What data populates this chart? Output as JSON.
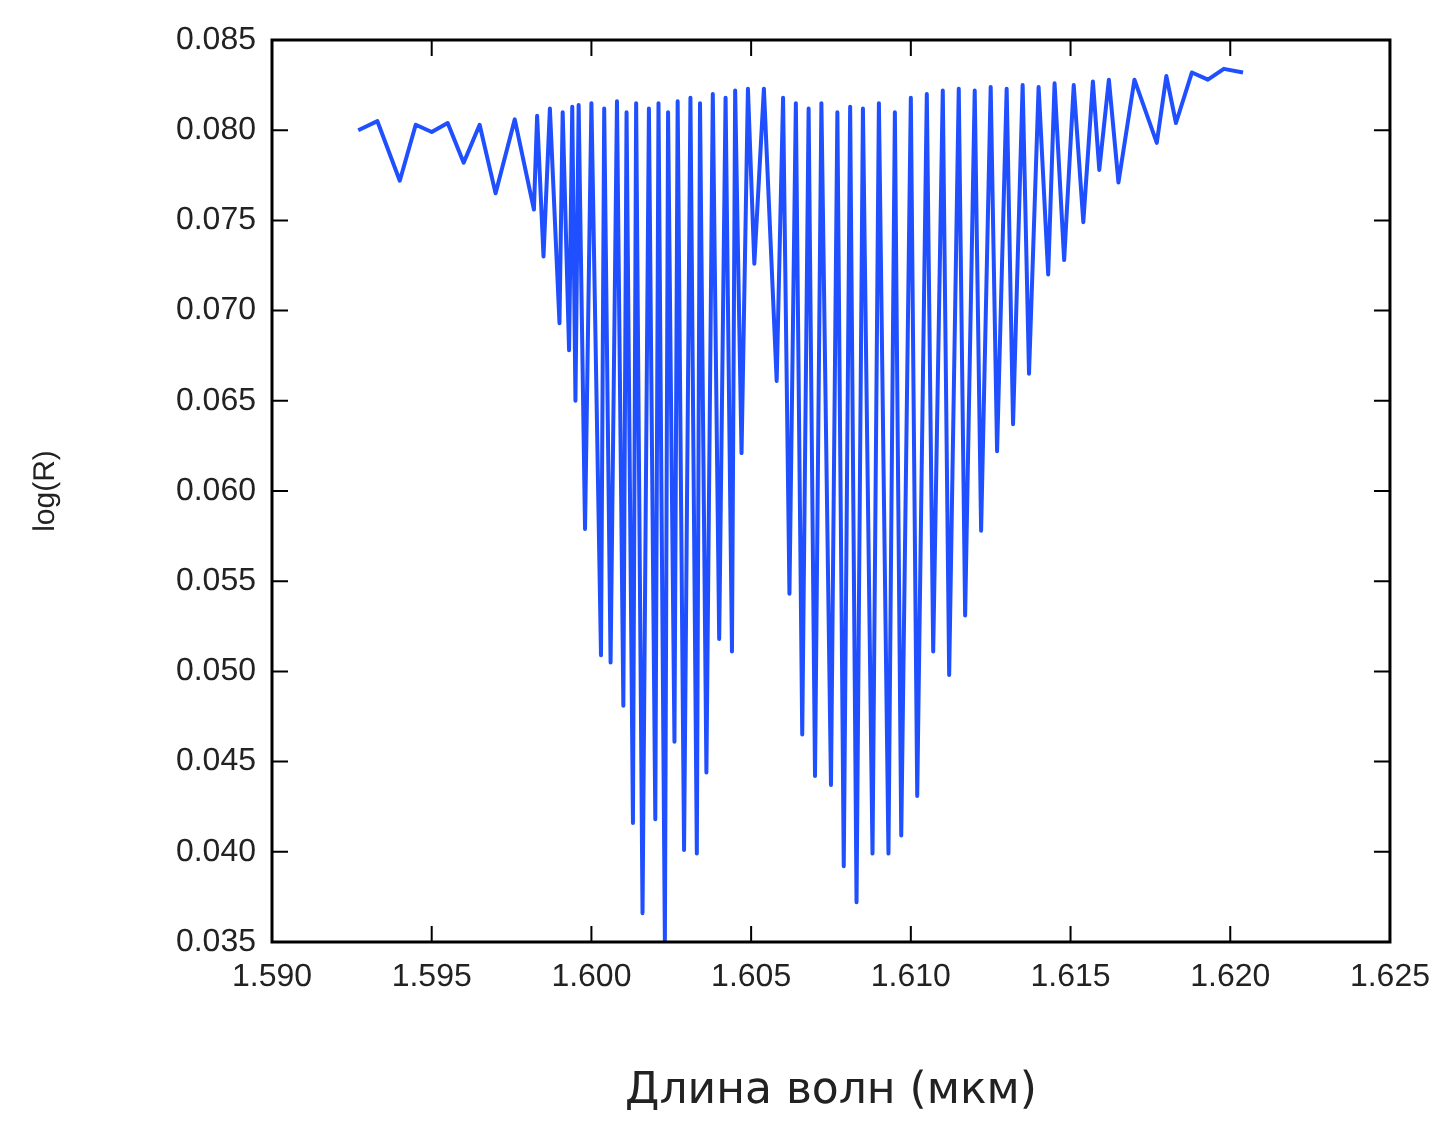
{
  "chart_data": {
    "type": "line",
    "xlabel": "Длина волн (мкм)",
    "ylabel": "log(R)",
    "xlim": [
      1.59,
      1.625
    ],
    "xticks": [
      {
        "value": 1.59,
        "label": "1.590"
      },
      1.595,
      {
        "value": 1.6,
        "label": "1.600"
      },
      1.605,
      {
        "value": 1.61,
        "label": "1.610"
      },
      1.615,
      {
        "value": 1.62,
        "label": "1.620"
      },
      1.625
    ],
    "ylim": [
      0.035,
      0.085
    ],
    "yticks": [
      0.035,
      {
        "value": 0.04,
        "label": "0.040"
      },
      0.045,
      {
        "value": 0.05,
        "label": "0.050"
      },
      0.055,
      {
        "value": 0.06,
        "label": "0.060"
      },
      0.065,
      {
        "value": 0.07,
        "label": "0.070"
      },
      0.075,
      {
        "value": 0.08,
        "label": "0.080"
      },
      0.085
    ],
    "marker": "none",
    "line_style": "solid",
    "legend": false,
    "series": [
      {
        "color": "#1f4fff",
        "x": [
          1.5927,
          1.5933,
          1.594,
          1.5945,
          1.595,
          1.5955,
          1.596,
          1.5965,
          1.597,
          1.5976,
          1.5982,
          1.5983,
          1.5985,
          1.5987,
          1.599,
          1.5991,
          1.5993,
          1.5994,
          1.5995,
          1.5996,
          1.5998,
          1.6,
          1.6003,
          1.6004,
          1.6006,
          1.6008,
          1.601,
          1.6011,
          1.6013,
          1.6014,
          1.6016,
          1.6018,
          1.602,
          1.6021,
          1.6023,
          1.6024,
          1.6026,
          1.6027,
          1.6029,
          1.6031,
          1.6033,
          1.6034,
          1.6036,
          1.6038,
          1.604,
          1.6042,
          1.6044,
          1.6045,
          1.6047,
          1.6049,
          1.6051,
          1.6054,
          1.6058,
          1.606,
          1.6062,
          1.6064,
          1.6066,
          1.6068,
          1.607,
          1.6072,
          1.6075,
          1.6077,
          1.6079,
          1.6081,
          1.6083,
          1.6085,
          1.6088,
          1.609,
          1.6093,
          1.6095,
          1.6097,
          1.61,
          1.6102,
          1.6105,
          1.6107,
          1.611,
          1.6112,
          1.6115,
          1.6117,
          1.612,
          1.6122,
          1.6125,
          1.6127,
          1.613,
          1.6132,
          1.6135,
          1.6137,
          1.614,
          1.6143,
          1.6145,
          1.6148,
          1.6151,
          1.6154,
          1.6157,
          1.6159,
          1.6162,
          1.6165,
          1.617,
          1.6177,
          1.618,
          1.6183,
          1.6188,
          1.6193,
          1.6198,
          1.6204
        ],
        "values": [
          0.08,
          0.0805,
          0.0772,
          0.0803,
          0.0799,
          0.0804,
          0.0782,
          0.0803,
          0.0765,
          0.0806,
          0.0756,
          0.0808,
          0.073,
          0.0812,
          0.0693,
          0.081,
          0.0678,
          0.0813,
          0.065,
          0.0814,
          0.0579,
          0.0815,
          0.0509,
          0.0812,
          0.0505,
          0.0816,
          0.0481,
          0.081,
          0.0416,
          0.0815,
          0.0366,
          0.0812,
          0.0418,
          0.0815,
          0.035,
          0.081,
          0.0461,
          0.0816,
          0.0401,
          0.0818,
          0.0399,
          0.0815,
          0.0444,
          0.082,
          0.0518,
          0.0818,
          0.0511,
          0.0822,
          0.0621,
          0.0823,
          0.0726,
          0.0823,
          0.0661,
          0.0818,
          0.0543,
          0.0815,
          0.0465,
          0.0812,
          0.0442,
          0.0815,
          0.0437,
          0.081,
          0.0392,
          0.0813,
          0.0372,
          0.0812,
          0.0399,
          0.0815,
          0.0399,
          0.081,
          0.0409,
          0.0818,
          0.0431,
          0.082,
          0.0511,
          0.0822,
          0.0498,
          0.0823,
          0.0531,
          0.0822,
          0.0578,
          0.0824,
          0.0622,
          0.0823,
          0.0637,
          0.0825,
          0.0665,
          0.0824,
          0.072,
          0.0826,
          0.0728,
          0.0825,
          0.0749,
          0.0827,
          0.0778,
          0.0828,
          0.0771,
          0.0828,
          0.0793,
          0.083,
          0.0804,
          0.0832,
          0.0828,
          0.0834,
          0.0832
        ]
      }
    ]
  }
}
